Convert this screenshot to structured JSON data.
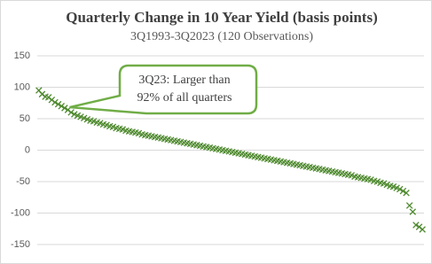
{
  "chart_data": {
    "type": "scatter",
    "title": "Quarterly Change in 10 Year Yield (basis points)",
    "subtitle": "3Q1993-3Q2023 (120 Observations)",
    "annotation": [
      "3Q23: Larger than",
      "92% of all quarters"
    ],
    "annotation_index": 9,
    "color": "#4e8a2e",
    "values": [
      95,
      89,
      85,
      84,
      80,
      76,
      73,
      70,
      67,
      64,
      60,
      57,
      55,
      53,
      51,
      49,
      47,
      46,
      44,
      43,
      41,
      40,
      38,
      37,
      35,
      34,
      33,
      31,
      30,
      29,
      28,
      27,
      25,
      24,
      23,
      22,
      21,
      20,
      19,
      18,
      17,
      16,
      15,
      14,
      13,
      12,
      11,
      10,
      9,
      8,
      7,
      6,
      5,
      4,
      3,
      2,
      1,
      0,
      -1,
      -2,
      -3,
      -4,
      -5,
      -6,
      -7,
      -8,
      -9,
      -10,
      -11,
      -12,
      -13,
      -14,
      -15,
      -16,
      -17,
      -18,
      -19,
      -20,
      -21,
      -22,
      -23,
      -24,
      -25,
      -26,
      -27,
      -28,
      -29,
      -30,
      -31,
      -32,
      -33,
      -34,
      -35,
      -36,
      -37,
      -38,
      -39,
      -40,
      -42,
      -43,
      -44,
      -45,
      -46,
      -47,
      -49,
      -50,
      -52,
      -53,
      -55,
      -57,
      -58,
      -60,
      -62,
      -65,
      -68,
      -88,
      -98,
      -119,
      -122,
      -126
    ],
    "ylim": [
      -150,
      150
    ],
    "yticks": [
      -150,
      -100,
      -50,
      0,
      50,
      100,
      150
    ],
    "grid": true
  }
}
